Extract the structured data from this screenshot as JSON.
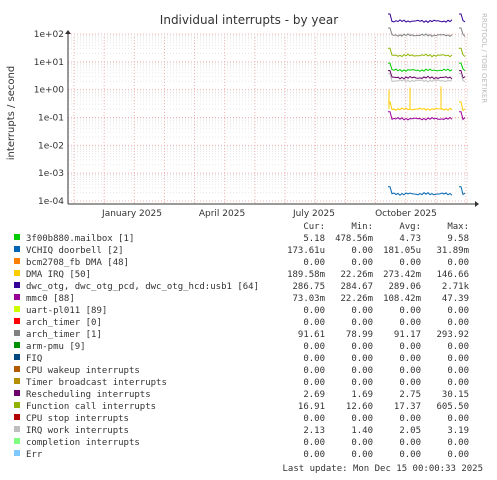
{
  "chart_data": {
    "type": "line",
    "title": "Individual interrupts - by year",
    "ylabel": "interrupts / second",
    "yscale": "log",
    "ylim": [
      0.0001,
      100
    ],
    "yticks": [
      "1e+02",
      "1e+01",
      "1e+00",
      "1e-01",
      "1e-02",
      "1e-03",
      "1e-04"
    ],
    "xticks": [
      "January 2025",
      "April 2025",
      "July 2025",
      "October 2025"
    ],
    "grid": true,
    "watermark": "RRDTOOL / TOBI OETIKER",
    "legend_headers": [
      "Cur:",
      "Min:",
      "Avg:",
      "Max:"
    ],
    "series": [
      {
        "name": "3f00b880.mailbox [1]",
        "color": "#00cc00",
        "cur": "5.18",
        "min": "478.56m",
        "avg": "4.73",
        "max": "9.58",
        "level": 5.0
      },
      {
        "name": "VCHIQ doorbell [2]",
        "color": "#0066b3",
        "cur": "173.61u",
        "min": "0.00",
        "avg": "181.05u",
        "max": "31.89m",
        "level": 0.00018
      },
      {
        "name": "bcm2708_fb DMA [48]",
        "color": "#ff8000",
        "cur": "0.00",
        "min": "0.00",
        "avg": "0.00",
        "max": "0.00",
        "level": 0
      },
      {
        "name": "DMA IRQ [50]",
        "color": "#ffcc00",
        "cur": "189.58m",
        "min": "22.26m",
        "avg": "273.42m",
        "max": "146.66",
        "level": 0.2
      },
      {
        "name": "dwc_otg, dwc_otg_pcd, dwc_otg_hcd:usb1 [64]",
        "color": "#330099",
        "cur": "286.75",
        "min": "284.67",
        "avg": "289.06",
        "max": "2.71k",
        "level": 290
      },
      {
        "name": "mmc0 [88]",
        "color": "#990099",
        "cur": "73.03m",
        "min": "22.26m",
        "avg": "108.42m",
        "max": "47.39",
        "level": 0.09
      },
      {
        "name": "uart-pl011 [89]",
        "color": "#ccff00",
        "cur": "0.00",
        "min": "0.00",
        "avg": "0.00",
        "max": "0.00",
        "level": 0
      },
      {
        "name": "arch_timer [0]",
        "color": "#ff0000",
        "cur": "0.00",
        "min": "0.00",
        "avg": "0.00",
        "max": "0.00",
        "level": 0
      },
      {
        "name": "arch_timer [1]",
        "color": "#808080",
        "cur": "91.61",
        "min": "78.99",
        "avg": "91.17",
        "max": "293.92",
        "level": 91
      },
      {
        "name": "arm-pmu [9]",
        "color": "#008f00",
        "cur": "0.00",
        "min": "0.00",
        "avg": "0.00",
        "max": "0.00",
        "level": 0
      },
      {
        "name": "FIQ",
        "color": "#00487d",
        "cur": "0.00",
        "min": "0.00",
        "avg": "0.00",
        "max": "0.00",
        "level": 0
      },
      {
        "name": "CPU wakeup interrupts",
        "color": "#b35a00",
        "cur": "0.00",
        "min": "0.00",
        "avg": "0.00",
        "max": "0.00",
        "level": 0
      },
      {
        "name": "Timer broadcast interrupts",
        "color": "#b38f00",
        "cur": "0.00",
        "min": "0.00",
        "avg": "0.00",
        "max": "0.00",
        "level": 0
      },
      {
        "name": "Rescheduling interrupts",
        "color": "#6b006b",
        "cur": "2.69",
        "min": "1.69",
        "avg": "2.75",
        "max": "30.15",
        "level": 2.7
      },
      {
        "name": "Function call interrupts",
        "color": "#8fb300",
        "cur": "16.91",
        "min": "12.60",
        "avg": "17.37",
        "max": "605.50",
        "level": 17
      },
      {
        "name": "CPU stop interrupts",
        "color": "#b30000",
        "cur": "0.00",
        "min": "0.00",
        "avg": "0.00",
        "max": "0.00",
        "level": 0
      },
      {
        "name": "IRQ work interrupts",
        "color": "#bebebe",
        "cur": "2.13",
        "min": "1.40",
        "avg": "2.05",
        "max": "3.19",
        "level": 2.1
      },
      {
        "name": "completion interrupts",
        "color": "#80ff80",
        "cur": "0.00",
        "min": "0.00",
        "avg": "0.00",
        "max": "0.00",
        "level": 0
      },
      {
        "name": "Err",
        "color": "#80c9ff",
        "cur": "0.00",
        "min": "0.00",
        "avg": "0.00",
        "max": "0.00",
        "level": 0
      }
    ],
    "last_update": "Last update: Mon Dec 15 00:00:33 2025"
  }
}
